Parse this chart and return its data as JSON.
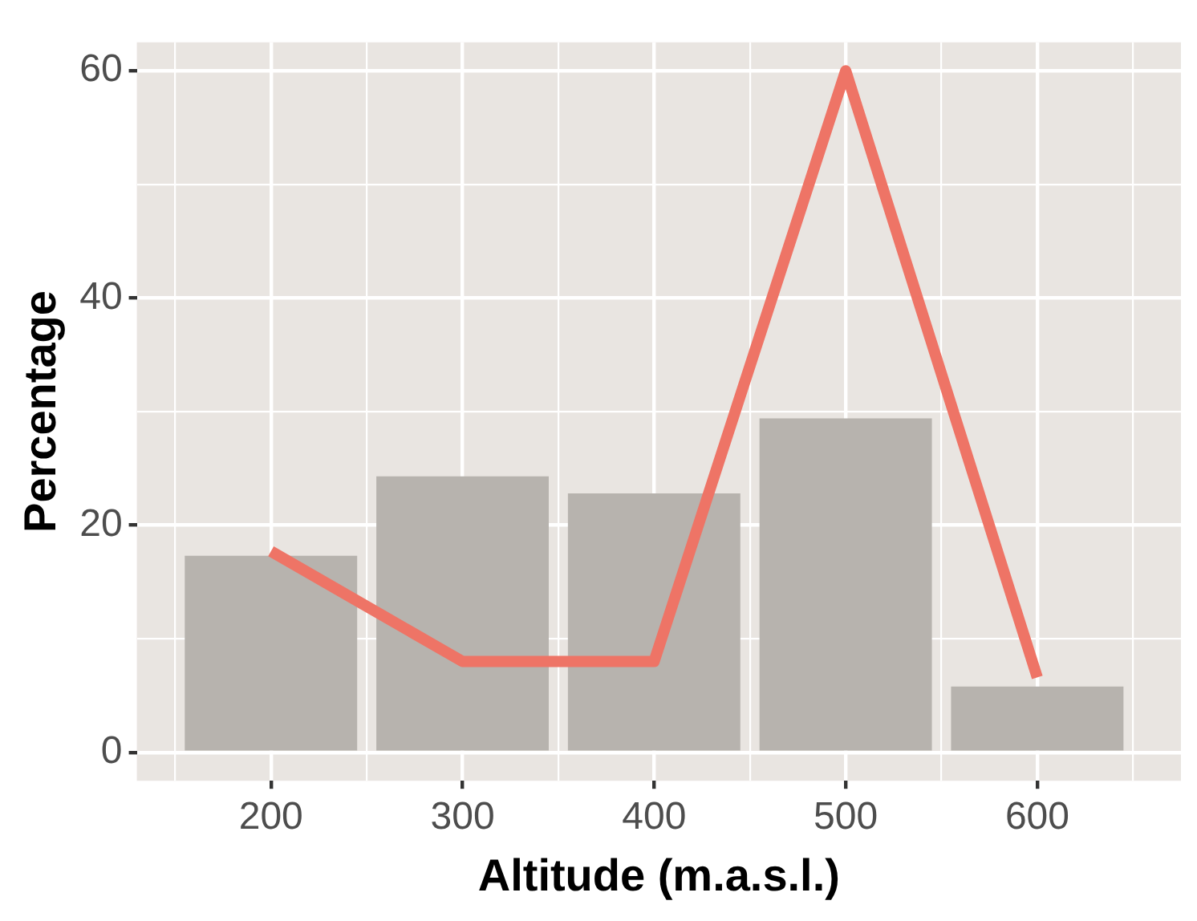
{
  "chart_data": {
    "type": "bar",
    "xlabel": "Altitude (m.a.s.l.)",
    "ylabel": "Percentage",
    "x": [
      200,
      300,
      400,
      500,
      600
    ],
    "series": [
      {
        "color": "#b7b3ae",
        "values": [
          17.3,
          24.3,
          22.8,
          29.4,
          5.8
        ]
      },
      {
        "type": "line",
        "color": "#ee7466",
        "values": [
          17.7,
          8.0,
          8.0,
          60,
          6.6
        ]
      }
    ],
    "xlim": [
      130,
      675
    ],
    "xticks": [
      {
        "value": 150,
        "label": null
      },
      200,
      {
        "value": 250,
        "label": null
      },
      300,
      {
        "value": 350,
        "label": null
      },
      400,
      {
        "value": 450,
        "label": null
      },
      500,
      {
        "value": 550,
        "label": null
      },
      600,
      {
        "value": 650,
        "label": null
      }
    ],
    "ylim": [
      -2.5,
      62.5
    ],
    "yticks": [
      0,
      {
        "value": 10,
        "label": null
      },
      20,
      {
        "value": 30,
        "label": null
      },
      40,
      {
        "value": 50,
        "label": null
      },
      60
    ],
    "grid": true,
    "legend": false,
    "line_style": "solid",
    "marker": "none"
  }
}
